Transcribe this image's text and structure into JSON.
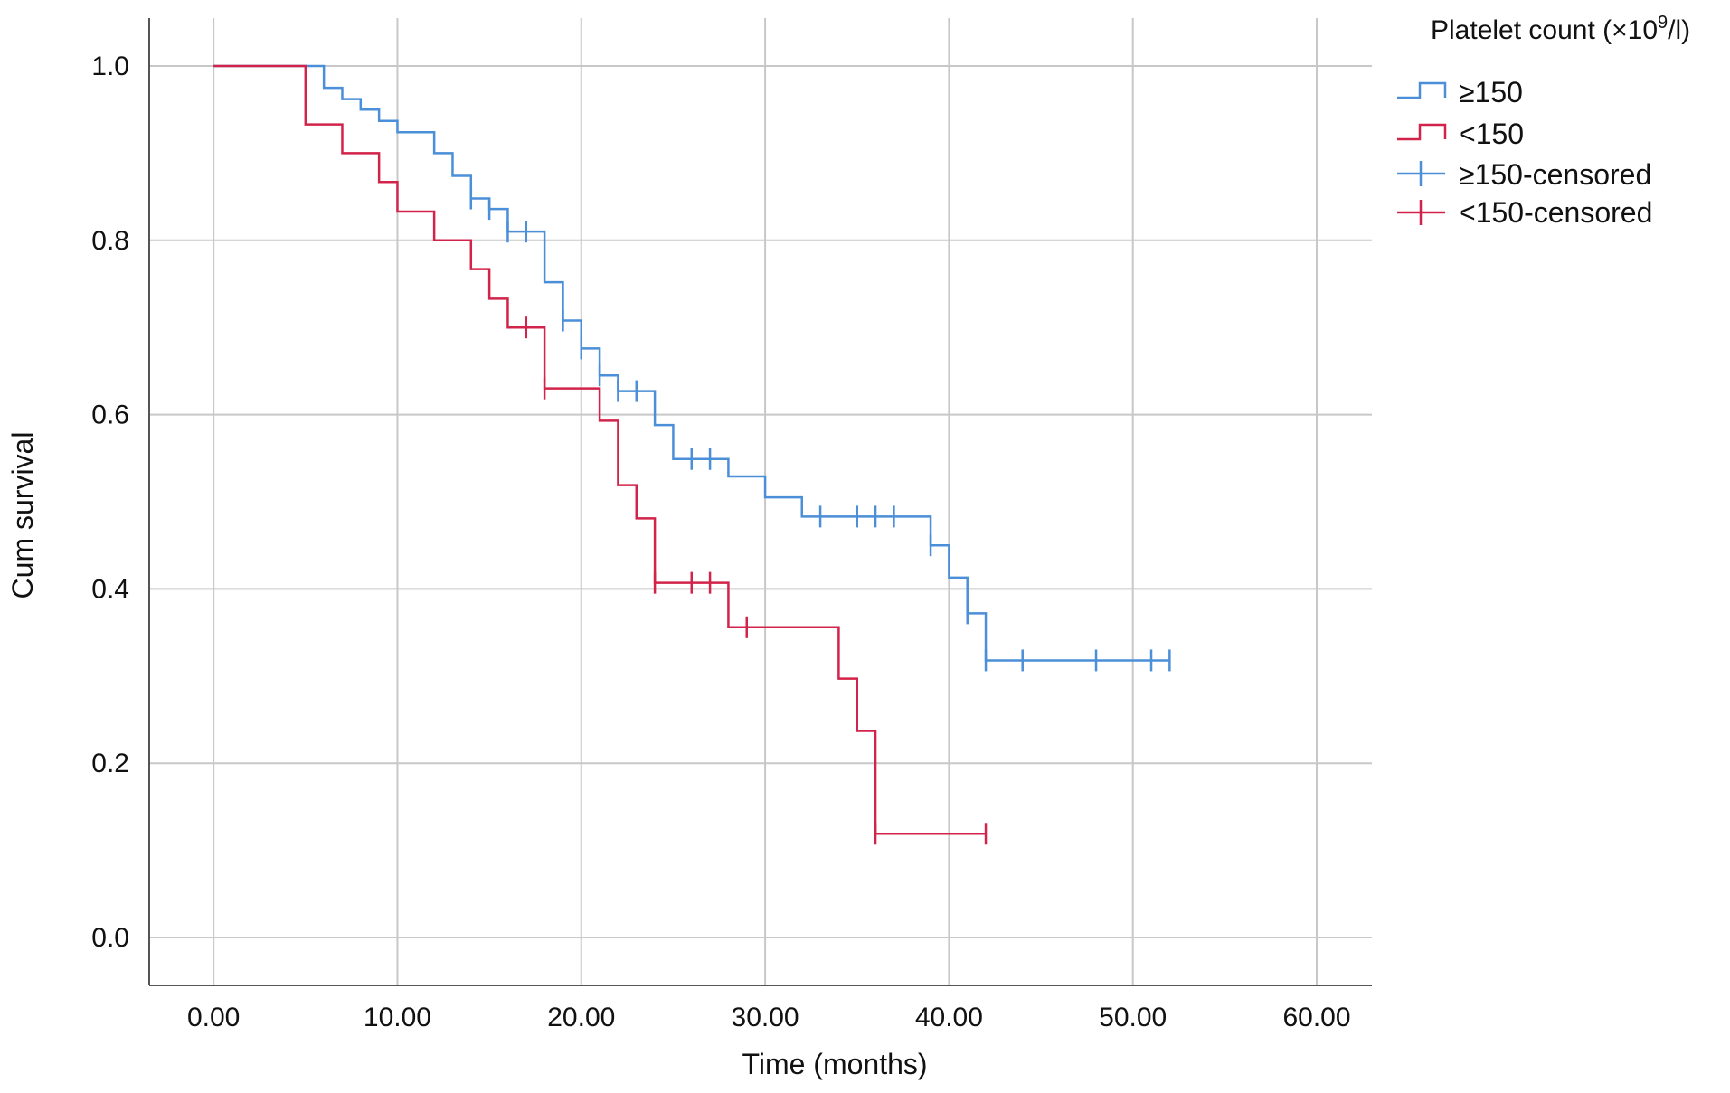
{
  "chart_data": {
    "type": "line",
    "subtype": "kaplan-meier step",
    "xlabel": "Time (months)",
    "ylabel": "Cum survival",
    "xlim": [
      -3.5,
      63
    ],
    "ylim": [
      -0.055,
      1.055
    ],
    "x_ticks": [
      0,
      10,
      20,
      30,
      40,
      50,
      60
    ],
    "x_tick_labels": [
      "0.00",
      "10.00",
      "20.00",
      "30.00",
      "40.00",
      "50.00",
      "60.00"
    ],
    "y_ticks": [
      0.0,
      0.2,
      0.4,
      0.6,
      0.8,
      1.0
    ],
    "y_tick_labels": [
      "0.0",
      "0.2",
      "0.4",
      "0.6",
      "0.8",
      "1.0"
    ],
    "grid": true,
    "legend": {
      "placement": "top-right, outside plot",
      "title_text": "Platelet count (×10",
      "title_sup": "9",
      "title_tail": "/l)",
      "entries": [
        "≥150",
        "<150",
        "≥150-censored",
        "<150-censored"
      ]
    },
    "series": [
      {
        "name": "≥150",
        "color": "#4a8fd8",
        "steps": [
          [
            0,
            1.0
          ],
          [
            6,
            0.975
          ],
          [
            7,
            0.962
          ],
          [
            8,
            0.95
          ],
          [
            9,
            0.937
          ],
          [
            10,
            0.924
          ],
          [
            12,
            0.9
          ],
          [
            13,
            0.874
          ],
          [
            14,
            0.848
          ],
          [
            15,
            0.836
          ],
          [
            16,
            0.81
          ],
          [
            18,
            0.752
          ],
          [
            19,
            0.708
          ],
          [
            20,
            0.676
          ],
          [
            21,
            0.645
          ],
          [
            22,
            0.627
          ],
          [
            24,
            0.588
          ],
          [
            25,
            0.549
          ],
          [
            28,
            0.529
          ],
          [
            30,
            0.505
          ],
          [
            32,
            0.483
          ],
          [
            39,
            0.45
          ],
          [
            40,
            0.413
          ],
          [
            41,
            0.372
          ],
          [
            42,
            0.318
          ]
        ],
        "end_x": 52,
        "censored": [
          [
            14,
            0.848
          ],
          [
            15,
            0.836
          ],
          [
            16,
            0.81
          ],
          [
            17,
            0.81
          ],
          [
            19,
            0.708
          ],
          [
            20,
            0.676
          ],
          [
            21,
            0.645
          ],
          [
            22,
            0.627
          ],
          [
            23,
            0.627
          ],
          [
            26,
            0.549
          ],
          [
            27,
            0.549
          ],
          [
            33,
            0.483
          ],
          [
            35,
            0.483
          ],
          [
            36,
            0.483
          ],
          [
            37,
            0.483
          ],
          [
            39,
            0.45
          ],
          [
            41,
            0.372
          ],
          [
            42,
            0.318
          ],
          [
            44,
            0.318
          ],
          [
            48,
            0.318
          ],
          [
            51,
            0.318
          ],
          [
            52,
            0.318
          ]
        ]
      },
      {
        "name": "<150",
        "color": "#d2234a",
        "steps": [
          [
            0,
            1.0
          ],
          [
            5,
            0.933
          ],
          [
            7,
            0.9
          ],
          [
            9,
            0.867
          ],
          [
            10,
            0.833
          ],
          [
            12,
            0.8
          ],
          [
            14,
            0.767
          ],
          [
            15,
            0.733
          ],
          [
            16,
            0.7
          ],
          [
            18,
            0.63
          ],
          [
            21,
            0.593
          ],
          [
            22,
            0.519
          ],
          [
            23,
            0.481
          ],
          [
            24,
            0.407
          ],
          [
            28,
            0.356
          ],
          [
            34,
            0.297
          ],
          [
            35,
            0.237
          ],
          [
            36,
            0.119
          ]
        ],
        "end_x": 42,
        "censored": [
          [
            17,
            0.7
          ],
          [
            18,
            0.63
          ],
          [
            24,
            0.407
          ],
          [
            26,
            0.407
          ],
          [
            27,
            0.407
          ],
          [
            29,
            0.356
          ],
          [
            36,
            0.119
          ],
          [
            42,
            0.119
          ]
        ]
      }
    ]
  }
}
